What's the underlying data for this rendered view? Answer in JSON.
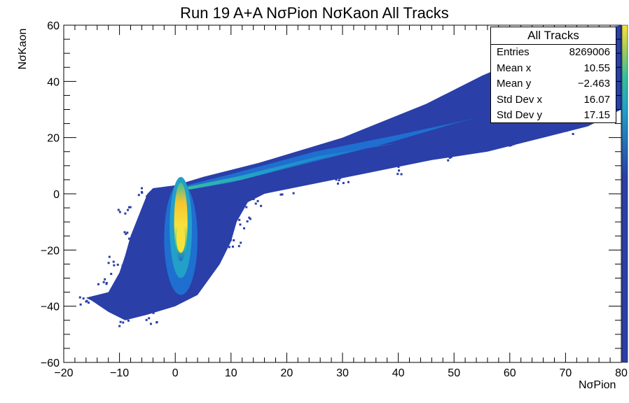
{
  "chart_data": {
    "type": "heatmap",
    "title": "Run 19 A+A NσPion NσKaon All Tracks",
    "xlabel": "NσPion",
    "ylabel": "NσKaon",
    "xlim": [
      -20,
      80
    ],
    "ylim": [
      -60,
      60
    ],
    "x_ticks": [
      "−20",
      "−10",
      "0",
      "10",
      "20",
      "30",
      "40",
      "50",
      "60",
      "70",
      "80"
    ],
    "y_ticks": [
      "−60",
      "−40",
      "−20",
      "0",
      "20",
      "40",
      "60"
    ],
    "grid": false,
    "colormap": [
      "#2a3fa8",
      "#1e6fd0",
      "#22a0c8",
      "#3cbf9a",
      "#a8cc5a",
      "#f5c430",
      "#f7e23a"
    ],
    "features": [
      {
        "name": "kaon band",
        "x": [
          -9,
          4
        ],
        "y": [
          -45,
          2
        ],
        "peak": [
          1,
          -16
        ]
      },
      {
        "name": "pion band",
        "x": [
          2,
          54
        ],
        "y": [
          2,
          27
        ]
      },
      {
        "name": "broad background",
        "x": [
          -16,
          80
        ],
        "y": [
          -50,
          60
        ]
      }
    ],
    "stats": {
      "title": "All Tracks",
      "rows": [
        {
          "label": "Entries",
          "value": "8269006"
        },
        {
          "label": "Mean x",
          "value": "10.55"
        },
        {
          "label": "Mean y",
          "value": "−2.463"
        },
        {
          "label": "Std Dev x",
          "value": "16.07"
        },
        {
          "label": "Std Dev y",
          "value": "17.15"
        }
      ]
    }
  }
}
